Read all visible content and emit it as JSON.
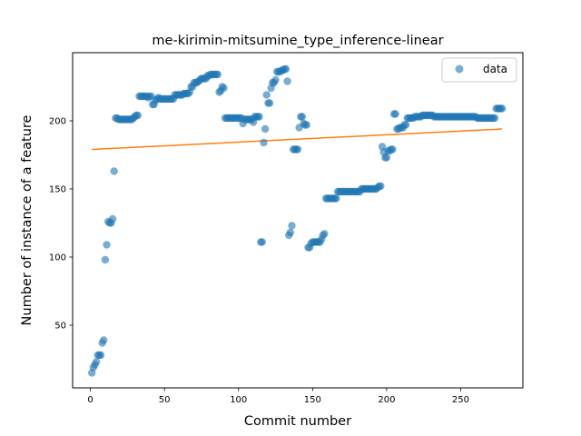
{
  "chart_data": {
    "type": "scatter",
    "title": "me-kirimin-mitsumine_type_inference-linear",
    "xlabel": "Commit number",
    "ylabel": "Number of instance of a feature",
    "xlim": [
      -12,
      292
    ],
    "ylim": [
      4,
      250
    ],
    "xticks": [
      0,
      50,
      100,
      150,
      200,
      250
    ],
    "yticks": [
      50,
      100,
      150,
      200
    ],
    "grid": false,
    "legend": {
      "position": "top-right",
      "entries": [
        "data"
      ]
    },
    "colors": {
      "points": "#1f77b4",
      "fit_line": "#ff7f0e"
    },
    "series": [
      {
        "name": "data",
        "points": [
          [
            1,
            15
          ],
          [
            2,
            19
          ],
          [
            3,
            21
          ],
          [
            4,
            23
          ],
          [
            5,
            28
          ],
          [
            6,
            28
          ],
          [
            7,
            28
          ],
          [
            8,
            37
          ],
          [
            9,
            39
          ],
          [
            10,
            98
          ],
          [
            11,
            109
          ],
          [
            12,
            126
          ],
          [
            13,
            125
          ],
          [
            14,
            125
          ],
          [
            15,
            128
          ],
          [
            16,
            163
          ],
          [
            17,
            202
          ],
          [
            18,
            202
          ],
          [
            19,
            201
          ],
          [
            20,
            201
          ],
          [
            21,
            201
          ],
          [
            22,
            201
          ],
          [
            23,
            201
          ],
          [
            24,
            201
          ],
          [
            25,
            201
          ],
          [
            26,
            201
          ],
          [
            27,
            201
          ],
          [
            28,
            201
          ],
          [
            29,
            202
          ],
          [
            30,
            203
          ],
          [
            31,
            204
          ],
          [
            32,
            204
          ],
          [
            33,
            218
          ],
          [
            34,
            218
          ],
          [
            35,
            218
          ],
          [
            36,
            218
          ],
          [
            37,
            218
          ],
          [
            38,
            218
          ],
          [
            39,
            217
          ],
          [
            40,
            218
          ],
          [
            41,
            218
          ],
          [
            42,
            212
          ],
          [
            43,
            212
          ],
          [
            44,
            215
          ],
          [
            45,
            216
          ],
          [
            46,
            217
          ],
          [
            47,
            216
          ],
          [
            48,
            216
          ],
          [
            49,
            216
          ],
          [
            50,
            216
          ],
          [
            51,
            216
          ],
          [
            52,
            216
          ],
          [
            53,
            216
          ],
          [
            54,
            216
          ],
          [
            55,
            216
          ],
          [
            56,
            216
          ],
          [
            57,
            219
          ],
          [
            58,
            219
          ],
          [
            59,
            219
          ],
          [
            60,
            219
          ],
          [
            61,
            219
          ],
          [
            62,
            219
          ],
          [
            63,
            220
          ],
          [
            64,
            220
          ],
          [
            65,
            220
          ],
          [
            66,
            220
          ],
          [
            67,
            221
          ],
          [
            68,
            225
          ],
          [
            69,
            225
          ],
          [
            70,
            228
          ],
          [
            71,
            228
          ],
          [
            72,
            228
          ],
          [
            73,
            229
          ],
          [
            74,
            230
          ],
          [
            75,
            231
          ],
          [
            76,
            231
          ],
          [
            77,
            231
          ],
          [
            78,
            231
          ],
          [
            79,
            233
          ],
          [
            80,
            233
          ],
          [
            81,
            234
          ],
          [
            82,
            234
          ],
          [
            83,
            234
          ],
          [
            84,
            234
          ],
          [
            85,
            234
          ],
          [
            86,
            234
          ],
          [
            87,
            221
          ],
          [
            88,
            222
          ],
          [
            89,
            225
          ],
          [
            90,
            224
          ],
          [
            91,
            202
          ],
          [
            92,
            202
          ],
          [
            93,
            202
          ],
          [
            94,
            202
          ],
          [
            95,
            202
          ],
          [
            96,
            202
          ],
          [
            97,
            202
          ],
          [
            98,
            202
          ],
          [
            99,
            202
          ],
          [
            100,
            202
          ],
          [
            101,
            202
          ],
          [
            102,
            202
          ],
          [
            103,
            198
          ],
          [
            104,
            201
          ],
          [
            105,
            201
          ],
          [
            106,
            201
          ],
          [
            107,
            201
          ],
          [
            108,
            201
          ],
          [
            109,
            201
          ],
          [
            110,
            199
          ],
          [
            111,
            203
          ],
          [
            112,
            203
          ],
          [
            113,
            203
          ],
          [
            114,
            203
          ],
          [
            115,
            111
          ],
          [
            116,
            111
          ],
          [
            117,
            184
          ],
          [
            118,
            194
          ],
          [
            119,
            219
          ],
          [
            120,
            213
          ],
          [
            121,
            213
          ],
          [
            122,
            224
          ],
          [
            123,
            228
          ],
          [
            124,
            228
          ],
          [
            125,
            230
          ],
          [
            126,
            236
          ],
          [
            127,
            236
          ],
          [
            128,
            236
          ],
          [
            129,
            237
          ],
          [
            130,
            237
          ],
          [
            131,
            238
          ],
          [
            132,
            238
          ],
          [
            133,
            229
          ],
          [
            134,
            116
          ],
          [
            135,
            118
          ],
          [
            136,
            123
          ],
          [
            137,
            179
          ],
          [
            138,
            179
          ],
          [
            139,
            179
          ],
          [
            140,
            179
          ],
          [
            141,
            195
          ],
          [
            142,
            203
          ],
          [
            143,
            203
          ],
          [
            144,
            198
          ],
          [
            145,
            197
          ],
          [
            146,
            197
          ],
          [
            147,
            107
          ],
          [
            148,
            107
          ],
          [
            149,
            110
          ],
          [
            150,
            111
          ],
          [
            151,
            111
          ],
          [
            152,
            111
          ],
          [
            153,
            111
          ],
          [
            154,
            111
          ],
          [
            155,
            111
          ],
          [
            156,
            113
          ],
          [
            157,
            116
          ],
          [
            158,
            117
          ],
          [
            159,
            143
          ],
          [
            160,
            143
          ],
          [
            161,
            143
          ],
          [
            162,
            143
          ],
          [
            163,
            143
          ],
          [
            164,
            143
          ],
          [
            165,
            143
          ],
          [
            166,
            143
          ],
          [
            167,
            148
          ],
          [
            168,
            148
          ],
          [
            169,
            148
          ],
          [
            170,
            148
          ],
          [
            171,
            148
          ],
          [
            172,
            148
          ],
          [
            173,
            148
          ],
          [
            174,
            148
          ],
          [
            175,
            148
          ],
          [
            176,
            148
          ],
          [
            177,
            148
          ],
          [
            178,
            148
          ],
          [
            179,
            148
          ],
          [
            180,
            148
          ],
          [
            181,
            148
          ],
          [
            182,
            148
          ],
          [
            183,
            150
          ],
          [
            184,
            150
          ],
          [
            185,
            150
          ],
          [
            186,
            150
          ],
          [
            187,
            150
          ],
          [
            188,
            150
          ],
          [
            189,
            150
          ],
          [
            190,
            150
          ],
          [
            191,
            150
          ],
          [
            192,
            150
          ],
          [
            193,
            150
          ],
          [
            194,
            151
          ],
          [
            195,
            152
          ],
          [
            196,
            152
          ],
          [
            197,
            181
          ],
          [
            198,
            177
          ],
          [
            199,
            173
          ],
          [
            200,
            173
          ],
          [
            201,
            178
          ],
          [
            202,
            178
          ],
          [
            203,
            179
          ],
          [
            204,
            179
          ],
          [
            205,
            205
          ],
          [
            206,
            205
          ],
          [
            207,
            194
          ],
          [
            208,
            194
          ],
          [
            209,
            195
          ],
          [
            210,
            195
          ],
          [
            211,
            195
          ],
          [
            212,
            197
          ],
          [
            213,
            197
          ],
          [
            214,
            202
          ],
          [
            215,
            202
          ],
          [
            216,
            202
          ],
          [
            217,
            202
          ],
          [
            218,
            202
          ],
          [
            219,
            203
          ],
          [
            220,
            203
          ],
          [
            221,
            203
          ],
          [
            222,
            203
          ],
          [
            223,
            203
          ],
          [
            224,
            204
          ],
          [
            225,
            204
          ],
          [
            226,
            204
          ],
          [
            227,
            204
          ],
          [
            228,
            204
          ],
          [
            229,
            204
          ],
          [
            230,
            204
          ],
          [
            231,
            204
          ],
          [
            232,
            203
          ],
          [
            233,
            203
          ],
          [
            234,
            203
          ],
          [
            235,
            203
          ],
          [
            236,
            203
          ],
          [
            237,
            203
          ],
          [
            238,
            203
          ],
          [
            239,
            203
          ],
          [
            240,
            203
          ],
          [
            241,
            203
          ],
          [
            242,
            203
          ],
          [
            243,
            203
          ],
          [
            244,
            203
          ],
          [
            245,
            203
          ],
          [
            246,
            203
          ],
          [
            247,
            203
          ],
          [
            248,
            203
          ],
          [
            249,
            203
          ],
          [
            250,
            203
          ],
          [
            251,
            203
          ],
          [
            252,
            203
          ],
          [
            253,
            203
          ],
          [
            254,
            203
          ],
          [
            255,
            203
          ],
          [
            256,
            203
          ],
          [
            257,
            203
          ],
          [
            258,
            203
          ],
          [
            259,
            203
          ],
          [
            260,
            203
          ],
          [
            261,
            202
          ],
          [
            262,
            202
          ],
          [
            263,
            202
          ],
          [
            264,
            202
          ],
          [
            265,
            202
          ],
          [
            266,
            202
          ],
          [
            267,
            202
          ],
          [
            268,
            202
          ],
          [
            269,
            202
          ],
          [
            270,
            202
          ],
          [
            271,
            202
          ],
          [
            272,
            202
          ],
          [
            273,
            202
          ],
          [
            274,
            209
          ],
          [
            275,
            209
          ],
          [
            276,
            209
          ],
          [
            277,
            209
          ],
          [
            278,
            209
          ]
        ]
      },
      {
        "name": "",
        "type": "line",
        "x": [
          1,
          278
        ],
        "y": [
          179,
          194
        ]
      }
    ]
  }
}
